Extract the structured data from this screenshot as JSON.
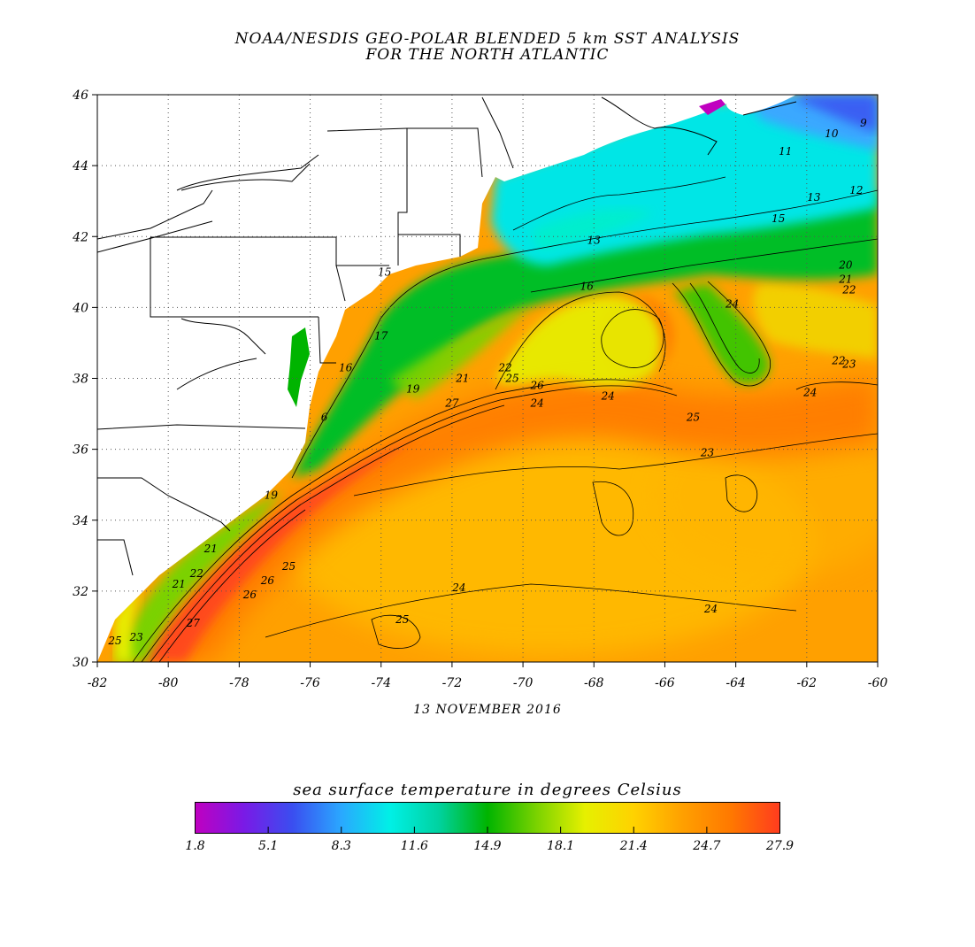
{
  "title_line1": "NOAA/NESDIS GEO-POLAR BLENDED 5 km SST ANALYSIS",
  "title_line2": "FOR THE NORTH ATLANTIC",
  "date": "13 NOVEMBER 2016",
  "colorbar": {
    "title": "sea surface temperature in degrees Celsius",
    "labels": [
      "1.8",
      "5.1",
      "8.3",
      "11.6",
      "14.9",
      "18.1",
      "21.4",
      "24.7",
      "27.9"
    ],
    "colors": [
      "#c000c0",
      "#7a1ae6",
      "#3a4ef0",
      "#2aa8ff",
      "#00f0e6",
      "#00d2a0",
      "#00b400",
      "#7ad200",
      "#e6f000",
      "#ffd200",
      "#ffa000",
      "#ff7800",
      "#ff3c1e"
    ]
  },
  "axes": {
    "lon_min": -82,
    "lon_max": -60,
    "lat_min": 30,
    "lat_max": 46,
    "x_ticks": [
      "-82",
      "-80",
      "-78",
      "-76",
      "-74",
      "-72",
      "-70",
      "-68",
      "-66",
      "-64",
      "-62",
      "-60"
    ],
    "y_ticks": [
      "30",
      "32",
      "34",
      "36",
      "38",
      "40",
      "42",
      "44",
      "46"
    ]
  },
  "contour_labels": [
    {
      "text": "11",
      "lon": -62.6,
      "lat": 44.3
    },
    {
      "text": "10",
      "lon": -61.3,
      "lat": 44.8
    },
    {
      "text": "9",
      "lon": -60.4,
      "lat": 45.1
    },
    {
      "text": "12",
      "lon": -60.6,
      "lat": 43.2
    },
    {
      "text": "13",
      "lon": -61.8,
      "lat": 43.0
    },
    {
      "text": "15",
      "lon": -62.8,
      "lat": 42.4
    },
    {
      "text": "13",
      "lon": -68.0,
      "lat": 41.8
    },
    {
      "text": "15",
      "lon": -73.9,
      "lat": 40.9
    },
    {
      "text": "16",
      "lon": -68.2,
      "lat": 40.5
    },
    {
      "text": "20",
      "lon": -60.9,
      "lat": 41.1
    },
    {
      "text": "21",
      "lon": -60.9,
      "lat": 40.7
    },
    {
      "text": "22",
      "lon": -60.8,
      "lat": 40.4
    },
    {
      "text": "24",
      "lon": -64.1,
      "lat": 40.0
    },
    {
      "text": "22",
      "lon": -61.1,
      "lat": 38.4
    },
    {
      "text": "23",
      "lon": -60.8,
      "lat": 38.3
    },
    {
      "text": "17",
      "lon": -74.0,
      "lat": 39.1
    },
    {
      "text": "16",
      "lon": -75.0,
      "lat": 38.2
    },
    {
      "text": "6",
      "lon": -75.6,
      "lat": 36.8
    },
    {
      "text": "22",
      "lon": -70.5,
      "lat": 38.2
    },
    {
      "text": "21",
      "lon": -71.7,
      "lat": 37.9
    },
    {
      "text": "25",
      "lon": -70.3,
      "lat": 37.9
    },
    {
      "text": "26",
      "lon": -69.6,
      "lat": 37.7
    },
    {
      "text": "19",
      "lon": -73.1,
      "lat": 37.6
    },
    {
      "text": "27",
      "lon": -72.0,
      "lat": 37.2
    },
    {
      "text": "24",
      "lon": -69.6,
      "lat": 37.2
    },
    {
      "text": "24",
      "lon": -67.6,
      "lat": 37.4
    },
    {
      "text": "25",
      "lon": -65.2,
      "lat": 36.8
    },
    {
      "text": "24",
      "lon": -61.9,
      "lat": 37.5
    },
    {
      "text": "23",
      "lon": -64.8,
      "lat": 35.8
    },
    {
      "text": "19",
      "lon": -77.1,
      "lat": 34.6
    },
    {
      "text": "21",
      "lon": -79.7,
      "lat": 32.1
    },
    {
      "text": "22",
      "lon": -79.2,
      "lat": 32.4
    },
    {
      "text": "21",
      "lon": -78.8,
      "lat": 33.1
    },
    {
      "text": "26",
      "lon": -77.7,
      "lat": 31.8
    },
    {
      "text": "26",
      "lon": -77.2,
      "lat": 32.2
    },
    {
      "text": "25",
      "lon": -76.6,
      "lat": 32.6
    },
    {
      "text": "27",
      "lon": -79.3,
      "lat": 31.0
    },
    {
      "text": "23",
      "lon": -80.9,
      "lat": 30.6
    },
    {
      "text": "25",
      "lon": -81.5,
      "lat": 30.5
    },
    {
      "text": "24",
      "lon": -71.8,
      "lat": 32.0
    },
    {
      "text": "25",
      "lon": -73.4,
      "lat": 31.1
    },
    {
      "text": "24",
      "lon": -64.7,
      "lat": 31.4
    }
  ]
}
